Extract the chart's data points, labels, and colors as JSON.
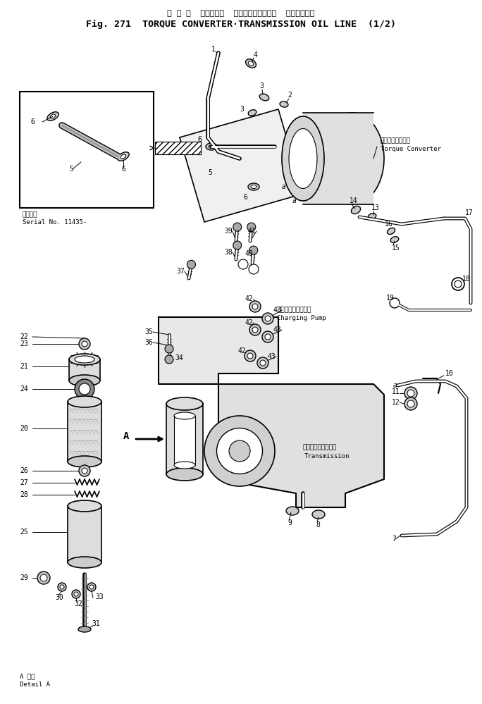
{
  "title_jp": "ト ル ク  コンバータ  トランスミッション  オイルライン",
  "title_en": "Fig. 271  TORQUE CONVERTER·TRANSMISSION OIL LINE  (1/2)",
  "bg": "#ffffff",
  "label_tc_jp": "トルクコンバータ",
  "label_tc_en": "Torque Converter",
  "label_trans_jp": "トランスミッション",
  "label_trans_en": "Transmission",
  "label_cp_jp": "チャージングポンプ",
  "label_cp_en": "Charging Pump",
  "label_serial_jp": "適用号機",
  "label_serial_en": "Serial No. 11435-",
  "label_detailA_jp": "A 断面",
  "label_detailA_en": "Detail A"
}
